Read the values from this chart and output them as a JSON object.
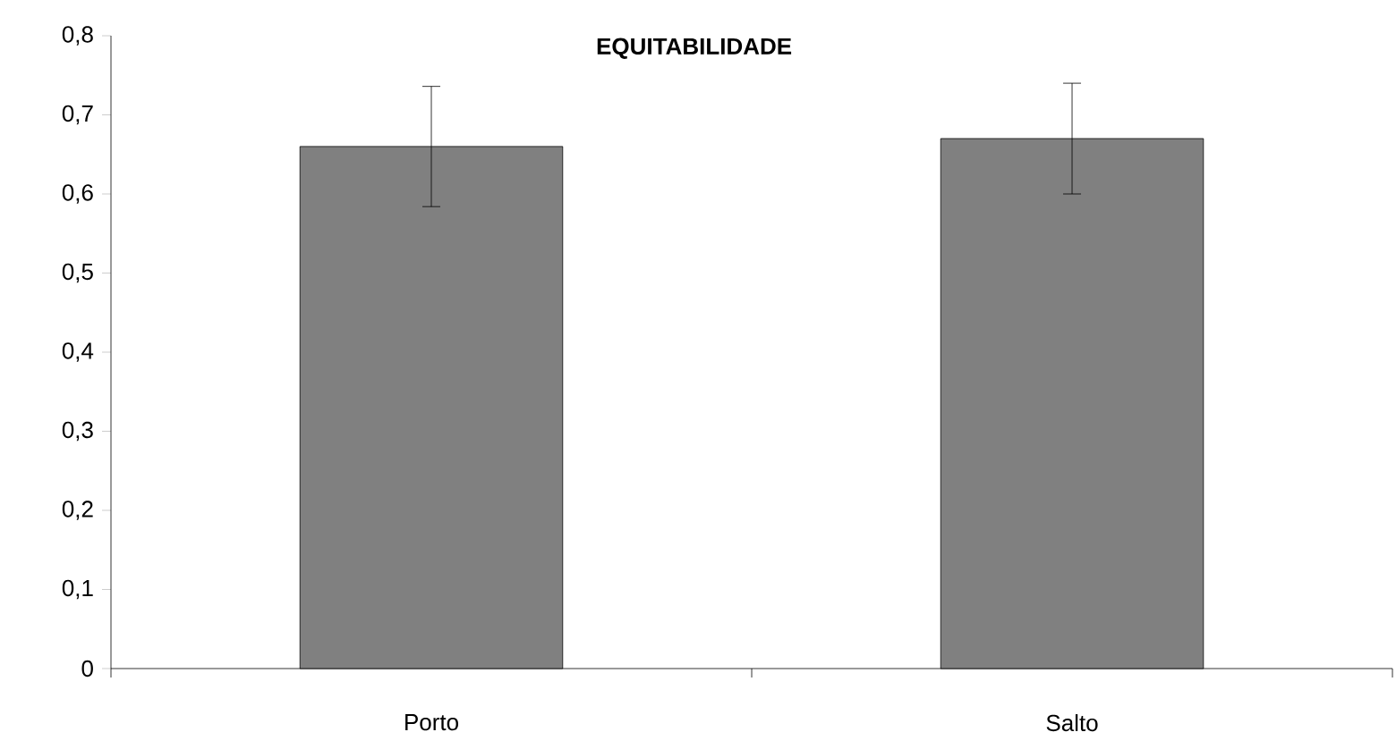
{
  "chart_data": {
    "type": "bar",
    "title": "EQUITABILIDADE",
    "categories": [
      "Porto",
      "Salto"
    ],
    "values": [
      0.66,
      0.67
    ],
    "errors": [
      0.076,
      0.07
    ],
    "color": "#808080",
    "ylim": [
      0,
      0.8
    ],
    "yticks": [
      0,
      {
        "value": 0.1,
        "label": "0,1"
      },
      {
        "value": 0.2,
        "label": "0,2"
      },
      {
        "value": 0.3,
        "label": "0,3"
      },
      {
        "value": 0.4,
        "label": "0,4"
      },
      {
        "value": 0.5,
        "label": "0,5"
      },
      {
        "value": 0.6,
        "label": "0,6"
      },
      {
        "value": 0.7,
        "label": "0,7"
      },
      {
        "value": 0.8,
        "label": "0,8"
      }
    ],
    "grid": false
  }
}
